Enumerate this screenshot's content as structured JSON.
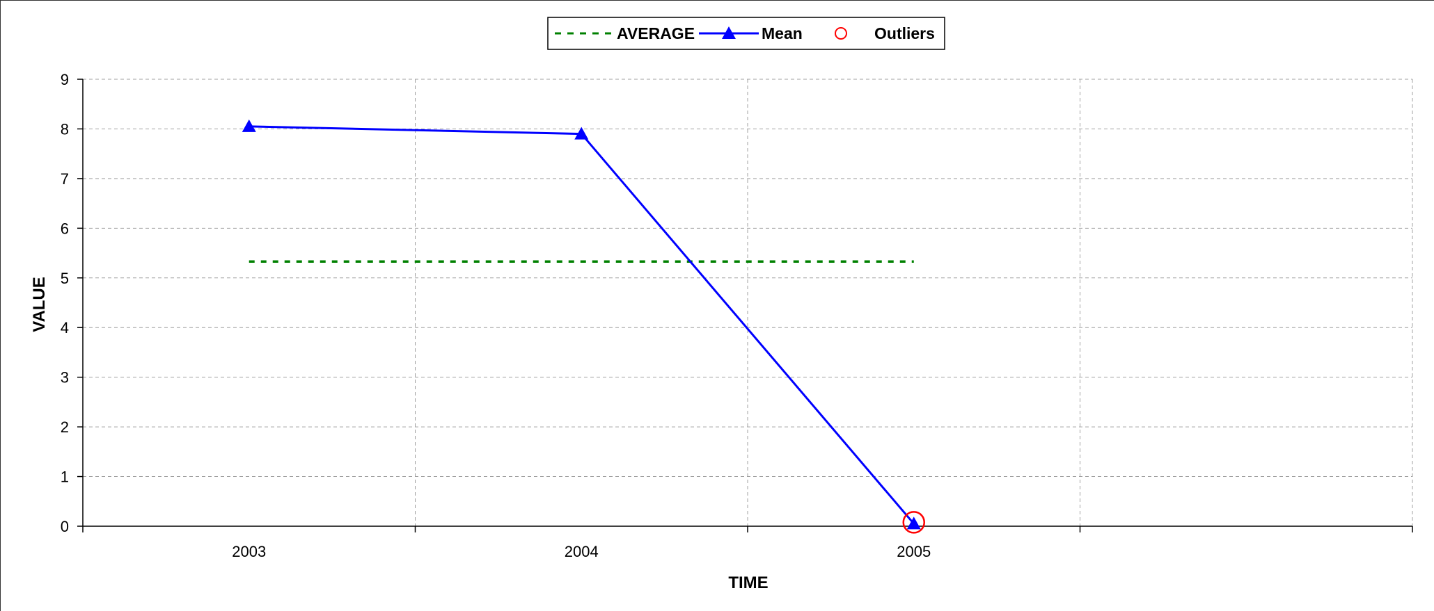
{
  "chart_data": {
    "type": "line",
    "categories": [
      "2003",
      "2004",
      "2005"
    ],
    "xlabel": "TIME",
    "ylabel": "VALUE",
    "ylim": [
      0,
      9
    ],
    "yticks": [
      "0",
      "1",
      "2",
      "3",
      "4",
      "5",
      "6",
      "7",
      "8",
      "9"
    ],
    "grid": true,
    "legend_position": "top-center",
    "series": [
      {
        "name": "AVERAGE",
        "style": "dashed",
        "color": "#008000",
        "values": [
          5.33,
          5.33,
          5.33
        ]
      },
      {
        "name": "Mean",
        "style": "solid",
        "marker": "triangle",
        "color": "#0000ff",
        "values": [
          8.05,
          7.9,
          0.05
        ]
      },
      {
        "name": "Outliers",
        "style": "none",
        "marker": "circle-open",
        "color": "#ff0000",
        "values": [
          null,
          null,
          0.05
        ]
      }
    ]
  }
}
